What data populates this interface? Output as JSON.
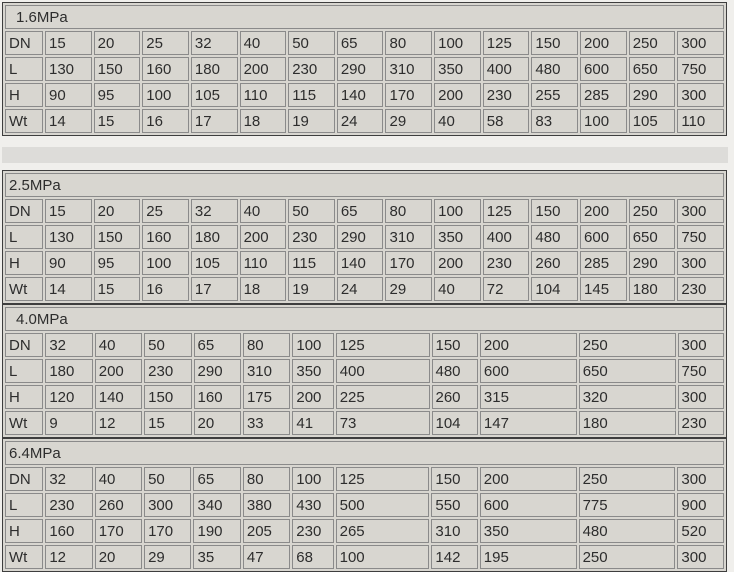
{
  "page": {
    "background_color": "#f0efec",
    "separator_band_color": "#dddcd9",
    "table_background_color": "#d8d6d0",
    "cell_border_color": "#8a8a8a",
    "table_border_color": "#3e3e3e",
    "text_color": "#2d2d2d"
  },
  "tables": [
    {
      "title": "1.6MPa",
      "title_indented": true,
      "rows": [
        {
          "label": "DN",
          "values": [
            "15",
            "20",
            "25",
            "32",
            "40",
            "50",
            "65",
            "80",
            "100",
            "125",
            "150",
            "200",
            "250",
            "300"
          ]
        },
        {
          "label": "L",
          "values": [
            "130",
            "150",
            "160",
            "180",
            "200",
            "230",
            "290",
            "310",
            "350",
            "400",
            "480",
            "600",
            "650",
            "750"
          ]
        },
        {
          "label": "H",
          "values": [
            "90",
            "95",
            "100",
            "105",
            "110",
            "115",
            "140",
            "170",
            "200",
            "230",
            "255",
            "285",
            "290",
            "300"
          ]
        },
        {
          "label": "Wt",
          "values": [
            "14",
            "15",
            "16",
            "17",
            "18",
            "19",
            "24",
            "29",
            "40",
            "58",
            "83",
            "100",
            "105",
            "110"
          ]
        }
      ]
    },
    {
      "title": "2.5MPa",
      "title_indented": false,
      "rows": [
        {
          "label": "DN",
          "values": [
            "15",
            "20",
            "25",
            "32",
            "40",
            "50",
            "65",
            "80",
            "100",
            "125",
            "150",
            "200",
            "250",
            "300"
          ]
        },
        {
          "label": "L",
          "values": [
            "130",
            "150",
            "160",
            "180",
            "200",
            "230",
            "290",
            "310",
            "350",
            "400",
            "480",
            "600",
            "650",
            "750"
          ]
        },
        {
          "label": "H",
          "values": [
            "90",
            "95",
            "100",
            "105",
            "110",
            "115",
            "140",
            "170",
            "200",
            "230",
            "260",
            "285",
            "290",
            "300"
          ]
        },
        {
          "label": "Wt",
          "values": [
            "14",
            "15",
            "16",
            "17",
            "18",
            "19",
            "24",
            "29",
            "40",
            "72",
            "104",
            "145",
            "180",
            "230"
          ]
        }
      ]
    },
    {
      "title": "4.0MPa",
      "title_indented": true,
      "rows": [
        {
          "label": "DN",
          "values": [
            "32",
            "40",
            "50",
            "65",
            "80",
            "100",
            "125",
            "150",
            "200",
            "250",
            "300"
          ]
        },
        {
          "label": "L",
          "values": [
            "180",
            "200",
            "230",
            "290",
            "310",
            "350",
            "400",
            "480",
            "600",
            "650",
            "750"
          ]
        },
        {
          "label": "H",
          "values": [
            "120",
            "140",
            "150",
            "160",
            "175",
            "200",
            "225",
            "260",
            "315",
            "320",
            "300"
          ]
        },
        {
          "label": "Wt",
          "values": [
            "9",
            "12",
            "15",
            "20",
            "33",
            "41",
            "73",
            "104",
            "147",
            "180",
            "230"
          ]
        }
      ]
    },
    {
      "title": "6.4MPa",
      "title_indented": false,
      "rows": [
        {
          "label": "DN",
          "values": [
            "32",
            "40",
            "50",
            "65",
            "80",
            "100",
            "125",
            "150",
            "200",
            "250",
            "300"
          ]
        },
        {
          "label": "L",
          "values": [
            "230",
            "260",
            "300",
            "340",
            "380",
            "430",
            "500",
            "550",
            "600",
            "775",
            "900"
          ]
        },
        {
          "label": "H",
          "values": [
            "160",
            "170",
            "170",
            "190",
            "205",
            "230",
            "265",
            "310",
            "350",
            "480",
            "520"
          ]
        },
        {
          "label": "Wt",
          "values": [
            "12",
            "20",
            "29",
            "35",
            "47",
            "68",
            "100",
            "142",
            "195",
            "250",
            "300"
          ]
        }
      ]
    }
  ]
}
